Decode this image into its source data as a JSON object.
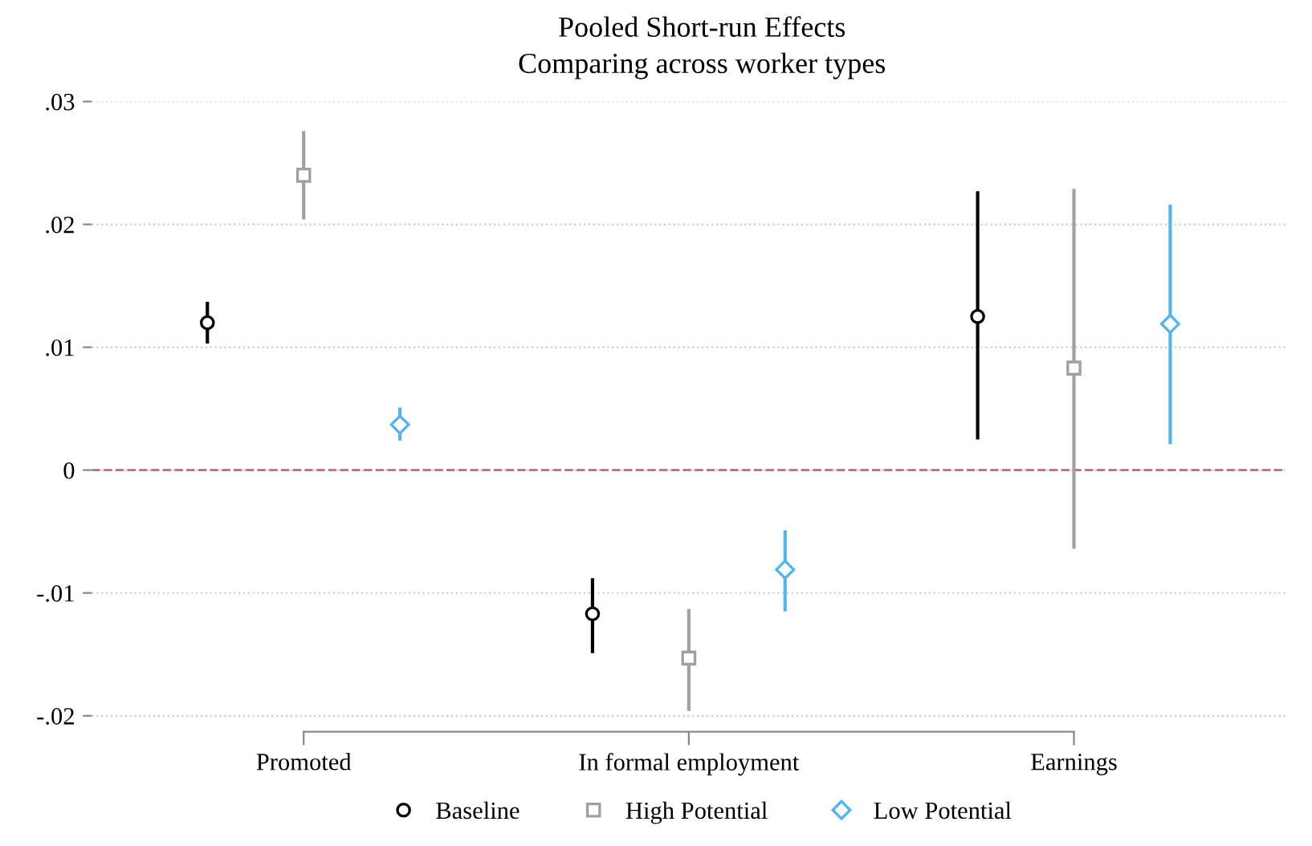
{
  "chart_data": {
    "type": "scatter",
    "title": "Pooled Short-run Effects",
    "subtitle": "Comparing across worker types",
    "categories": [
      "Promoted",
      "In formal employment",
      "Earnings"
    ],
    "series": [
      {
        "name": "Baseline",
        "color": "#000000",
        "marker": "circle",
        "values": [
          0.012,
          -0.0117,
          0.0125
        ],
        "errors": [
          [
            0.0103,
            0.0137
          ],
          [
            -0.0149,
            -0.0088
          ],
          [
            0.0025,
            0.0227
          ]
        ]
      },
      {
        "name": "High Potential",
        "color": "#a0a0a0",
        "marker": "square",
        "values": [
          0.024,
          -0.0153,
          0.0083
        ],
        "errors": [
          [
            0.0204,
            0.0276
          ],
          [
            -0.0196,
            -0.0113
          ],
          [
            -0.0064,
            0.0229
          ]
        ]
      },
      {
        "name": "Low Potential",
        "color": "#56b4e9",
        "marker": "diamond",
        "values": [
          0.0037,
          -0.0081,
          0.0119
        ],
        "errors": [
          [
            0.0024,
            0.0051
          ],
          [
            -0.0115,
            -0.0049
          ],
          [
            0.0021,
            0.0216
          ]
        ]
      }
    ],
    "ylim": [
      -0.0213,
      0.03
    ],
    "yticks": [
      {
        "value": -0.02,
        "label": "-.02"
      },
      {
        "value": -0.01,
        "label": "-.01"
      },
      {
        "value": 0,
        "label": "0"
      },
      {
        "value": 0.01,
        "label": ".01"
      },
      {
        "value": 0.02,
        "label": ".02"
      },
      {
        "value": 0.03,
        "label": ".03"
      }
    ],
    "ref_lines": [
      {
        "axis": "y",
        "value": 0,
        "color": "#b07088",
        "line_style": "dashed"
      }
    ],
    "grid": "y",
    "legend": "bottom"
  }
}
